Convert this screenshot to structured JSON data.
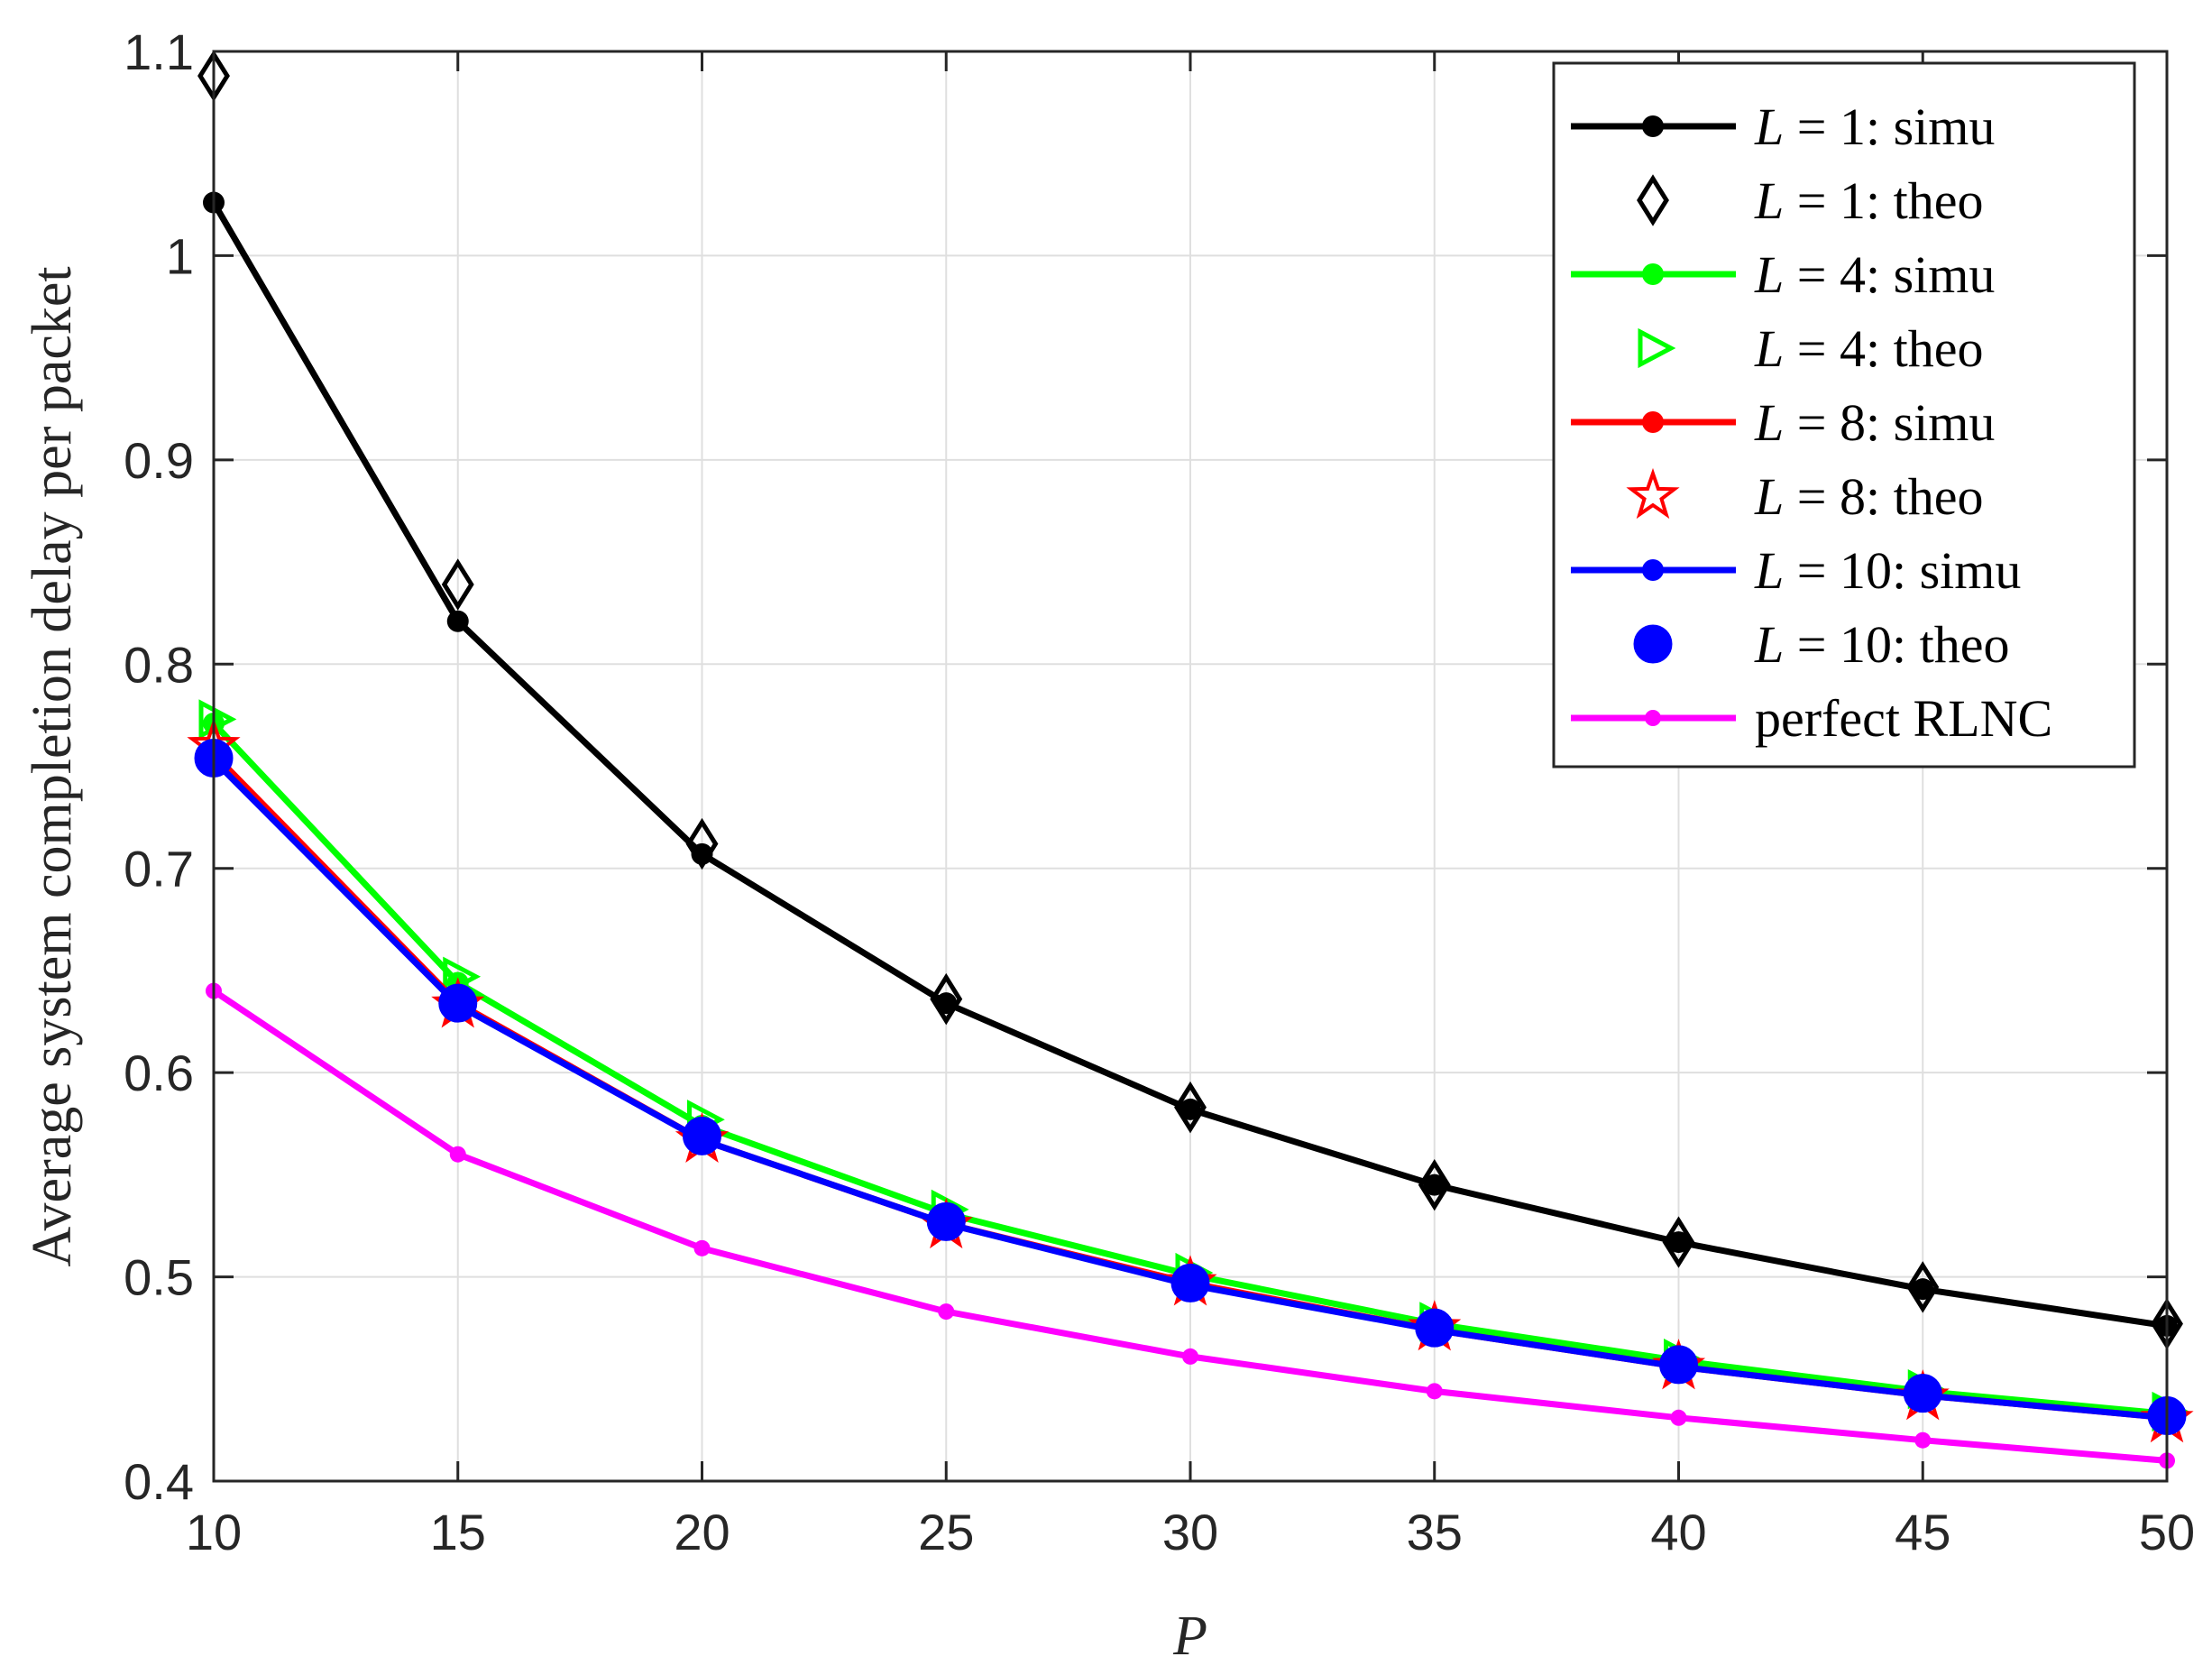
{
  "chart_data": {
    "type": "line",
    "xlabel": "P",
    "ylabel": "Average system completion delay per packet",
    "xlim": [
      10,
      50
    ],
    "ylim": [
      0.4,
      1.1
    ],
    "xticks": [
      10,
      15,
      20,
      25,
      30,
      35,
      40,
      45,
      50
    ],
    "yticks": [
      0.4,
      0.5,
      0.6,
      0.7,
      0.8,
      0.9,
      1,
      1.1
    ],
    "xtick_labels": [
      "10",
      "15",
      "20",
      "25",
      "30",
      "35",
      "40",
      "45",
      "50"
    ],
    "ytick_labels": [
      "0.4",
      "0.5",
      "0.6",
      "0.7",
      "0.8",
      "0.9",
      "1",
      "1.1"
    ],
    "grid": true,
    "legend_position": "top-right",
    "x": [
      10,
      15,
      20,
      25,
      30,
      35,
      40,
      45,
      50
    ],
    "series": [
      {
        "name_var": "L",
        "name_rest": " = 1: simu",
        "color": "#000000",
        "line": true,
        "marker": "dot",
        "values": [
          1.026,
          0.821,
          0.707,
          0.634,
          0.582,
          0.545,
          0.517,
          0.494,
          0.476
        ]
      },
      {
        "name_var": "L",
        "name_rest": " = 1: theo",
        "color": "#000000",
        "line": false,
        "marker": "diamond",
        "values": [
          1.088,
          0.839,
          0.712,
          0.636,
          0.583,
          0.545,
          0.517,
          0.495,
          0.477
        ]
      },
      {
        "name_var": "L",
        "name_rest": " = 4: simu",
        "color": "#00ff00",
        "line": true,
        "marker": "dot",
        "values": [
          0.771,
          0.644,
          0.574,
          0.531,
          0.501,
          0.477,
          0.459,
          0.444,
          0.433
        ]
      },
      {
        "name_var": "L",
        "name_rest": " = 4: theo",
        "color": "#00ff00",
        "line": false,
        "marker": "triangle-right",
        "values": [
          0.773,
          0.647,
          0.577,
          0.533,
          0.502,
          0.478,
          0.46,
          0.445,
          0.434
        ]
      },
      {
        "name_var": "L",
        "name_rest": " = 8: simu",
        "color": "#ff0000",
        "line": true,
        "marker": "dot",
        "values": [
          0.756,
          0.634,
          0.567,
          0.526,
          0.497,
          0.474,
          0.456,
          0.442,
          0.431
        ]
      },
      {
        "name_var": "L",
        "name_rest": " = 8: theo",
        "color": "#ff0000",
        "line": false,
        "marker": "star",
        "values": [
          0.76,
          0.633,
          0.567,
          0.525,
          0.497,
          0.475,
          0.456,
          0.441,
          0.43
        ]
      },
      {
        "name_var": "L",
        "name_rest": " = 10: simu",
        "color": "#0000ff",
        "line": true,
        "marker": "dot",
        "values": [
          0.753,
          0.633,
          0.567,
          0.526,
          0.496,
          0.474,
          0.456,
          0.442,
          0.431
        ]
      },
      {
        "name_var": "L",
        "name_rest": " = 10: theo",
        "color": "#0000ff",
        "line": false,
        "marker": "circle-big",
        "values": [
          0.754,
          0.634,
          0.569,
          0.527,
          0.497,
          0.475,
          0.457,
          0.443,
          0.432
        ]
      },
      {
        "name_var": "",
        "name_rest": "perfect RLNC",
        "color": "#ff00ff",
        "line": true,
        "marker": "dot-small",
        "values": [
          0.64,
          0.56,
          0.514,
          0.483,
          0.461,
          0.444,
          0.431,
          0.42,
          0.41
        ]
      }
    ]
  }
}
